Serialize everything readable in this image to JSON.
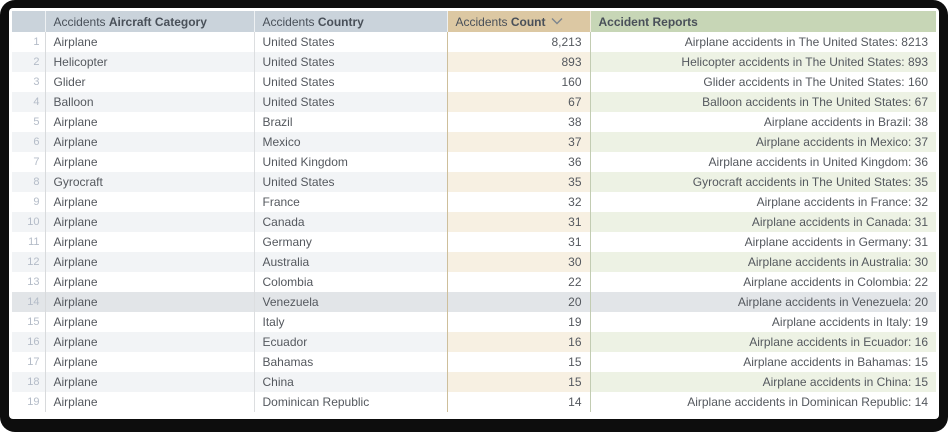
{
  "table": {
    "header": {
      "columns": [
        {
          "id": "aircraft_category",
          "prefix": "Accidents ",
          "name": "Aircraft Category"
        },
        {
          "id": "country",
          "prefix": "Accidents ",
          "name": "Country"
        },
        {
          "id": "count",
          "prefix": "Accidents ",
          "name": "Count",
          "sort": "descending"
        },
        {
          "id": "accident_reports",
          "prefix": "",
          "name": "Accident Reports"
        }
      ]
    },
    "rows": [
      {
        "num": 1,
        "category": "Airplane",
        "country": "United States",
        "count": "8,213",
        "report": "Airplane accidents in The United States: 8213"
      },
      {
        "num": 2,
        "category": "Helicopter",
        "country": "United States",
        "count": "893",
        "report": "Helicopter accidents in The United States: 893"
      },
      {
        "num": 3,
        "category": "Glider",
        "country": "United States",
        "count": "160",
        "report": "Glider accidents in The United States: 160"
      },
      {
        "num": 4,
        "category": "Balloon",
        "country": "United States",
        "count": "67",
        "report": "Balloon accidents in The United States: 67"
      },
      {
        "num": 5,
        "category": "Airplane",
        "country": "Brazil",
        "count": "38",
        "report": "Airplane accidents in Brazil: 38"
      },
      {
        "num": 6,
        "category": "Airplane",
        "country": "Mexico",
        "count": "37",
        "report": "Airplane accidents in Mexico: 37"
      },
      {
        "num": 7,
        "category": "Airplane",
        "country": "United Kingdom",
        "count": "36",
        "report": "Airplane accidents in United Kingdom: 36"
      },
      {
        "num": 8,
        "category": "Gyrocraft",
        "country": "United States",
        "count": "35",
        "report": "Gyrocraft accidents in The United States: 35"
      },
      {
        "num": 9,
        "category": "Airplane",
        "country": "France",
        "count": "32",
        "report": "Airplane accidents in France: 32"
      },
      {
        "num": 10,
        "category": "Airplane",
        "country": "Canada",
        "count": "31",
        "report": "Airplane accidents in Canada: 31"
      },
      {
        "num": 11,
        "category": "Airplane",
        "country": "Germany",
        "count": "31",
        "report": "Airplane accidents in Germany: 31"
      },
      {
        "num": 12,
        "category": "Airplane",
        "country": "Australia",
        "count": "30",
        "report": "Airplane accidents in Australia: 30"
      },
      {
        "num": 13,
        "category": "Airplane",
        "country": "Colombia",
        "count": "22",
        "report": "Airplane accidents in Colombia: 22"
      },
      {
        "num": 14,
        "category": "Airplane",
        "country": "Venezuela",
        "count": "20",
        "report": "Airplane accidents in Venezuela: 20"
      },
      {
        "num": 15,
        "category": "Airplane",
        "country": "Italy",
        "count": "19",
        "report": "Airplane accidents in Italy: 19"
      },
      {
        "num": 16,
        "category": "Airplane",
        "country": "Ecuador",
        "count": "16",
        "report": "Airplane accidents in Ecuador: 16"
      },
      {
        "num": 17,
        "category": "Airplane",
        "country": "Bahamas",
        "count": "15",
        "report": "Airplane accidents in Bahamas: 15"
      },
      {
        "num": 18,
        "category": "Airplane",
        "country": "China",
        "count": "15",
        "report": "Airplane accidents in China: 15"
      },
      {
        "num": 19,
        "category": "Airplane",
        "country": "Dominican Republic",
        "count": "14",
        "report": "Airplane accidents in Dominican Republic: 14"
      }
    ],
    "highlighted_row_number": 14,
    "colors": {
      "header_category_country_bg": "#cad3db",
      "header_count_bg": "#dcc8a3",
      "header_reports_bg": "#c7d6b6",
      "stripe_gray": "#f2f4f6",
      "stripe_tan": "#f7f0e2",
      "stripe_green": "#edf2e4",
      "highlight_row_bg": "#e2e5e8",
      "frame_bg": "#0d0d0d"
    }
  }
}
